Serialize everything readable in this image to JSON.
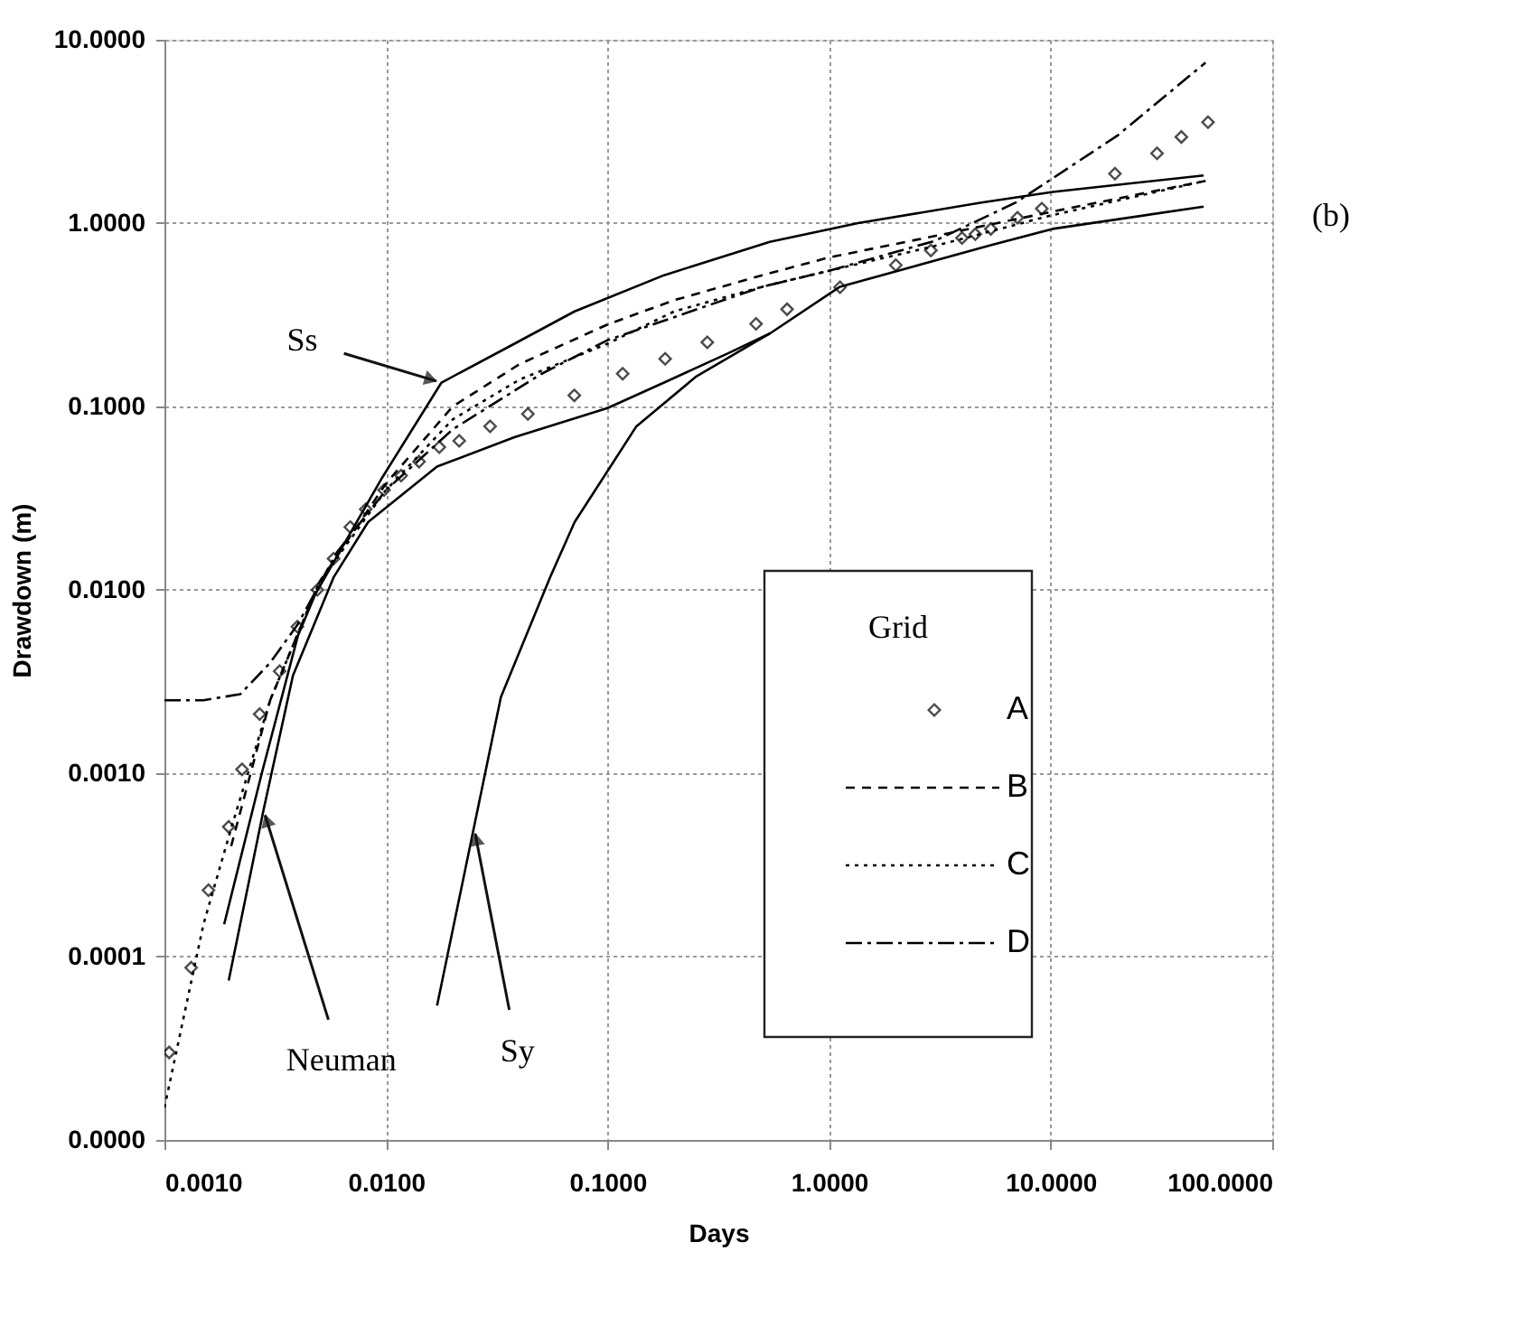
{
  "chart_data": {
    "type": "line",
    "xlabel": "Days",
    "ylabel": "Drawdown (m)",
    "legend_title": "Grid",
    "log": "xy",
    "grid": true,
    "legend": "bottom right",
    "xlim": [
      0.001,
      100
    ],
    "ylim": [
      1e-05,
      10
    ],
    "xticks": [
      {
        "value": 0.001,
        "label": "0.0010"
      },
      {
        "value": 0.01,
        "label": "0.0100"
      },
      {
        "value": 0.1,
        "label": "0.1000"
      },
      {
        "value": 1,
        "label": "1.0000"
      },
      {
        "value": 10,
        "label": "10.0000"
      },
      {
        "value": 100,
        "label": "100.0000"
      }
    ],
    "yticks": [
      {
        "value": 1e-05,
        "label": "0.0000"
      },
      {
        "value": 0.0001,
        "label": "0.0001"
      },
      {
        "value": 0.001,
        "label": "0.0010"
      },
      {
        "value": 0.01,
        "label": "0.0100"
      },
      {
        "value": 0.1,
        "label": "0.1000"
      },
      {
        "value": 1,
        "label": "1.0000"
      },
      {
        "value": 10,
        "label": "10.0000"
      }
    ],
    "series": [
      {
        "name": "A",
        "type": "scatter",
        "marker": "diamond",
        "color": "#000000",
        "x": [
          0.00105,
          0.00132,
          0.00158,
          0.00195,
          0.00224,
          0.00269,
          0.00331,
          0.00398,
          0.0049,
          0.0058,
          0.0069,
          0.0081,
          0.0098,
          0.0117,
          0.0141,
          0.0174,
          0.0214,
          0.0295,
          0.0437,
          0.0708,
          0.117,
          0.182,
          0.282,
          0.468,
          0.646,
          1.12,
          2.0,
          2.88,
          3.98,
          4.57,
          5.37,
          7.08,
          9.12,
          19.5,
          30.2,
          38.9,
          51.3
        ],
        "values": [
          3e-05,
          8.7e-05,
          0.00023,
          0.00051,
          0.00105,
          0.0021,
          0.0036,
          0.0063,
          0.01,
          0.0148,
          0.022,
          0.0275,
          0.035,
          0.042,
          0.05,
          0.06,
          0.065,
          0.078,
          0.091,
          0.115,
          0.151,
          0.182,
          0.224,
          0.282,
          0.339,
          0.447,
          0.59,
          0.71,
          0.83,
          0.87,
          0.93,
          1.07,
          1.2,
          1.86,
          2.4,
          2.95,
          3.55
        ]
      },
      {
        "name": "B",
        "line_style": "dashed",
        "color": "#000000",
        "x": [
          0.002,
          0.003,
          0.005,
          0.01,
          0.02,
          0.04,
          0.1,
          0.2,
          0.5,
          1,
          3,
          10,
          50
        ],
        "values": [
          0.0004,
          0.0025,
          0.011,
          0.038,
          0.1,
          0.17,
          0.28,
          0.38,
          0.52,
          0.65,
          0.85,
          1.15,
          1.7
        ]
      },
      {
        "name": "C",
        "line_style": "dotted",
        "color": "#000000",
        "x": [
          0.001,
          0.0015,
          0.002,
          0.003,
          0.005,
          0.01,
          0.02,
          0.04,
          0.1,
          0.2,
          0.5,
          1,
          3,
          10,
          50
        ],
        "values": [
          1.5e-05,
          0.00015,
          0.0005,
          0.0025,
          0.011,
          0.035,
          0.085,
          0.14,
          0.22,
          0.33,
          0.45,
          0.55,
          0.75,
          1.1,
          1.7
        ]
      },
      {
        "name": "D",
        "line_style": "dashdot",
        "color": "#000000",
        "x": [
          0.001,
          0.0015,
          0.0022,
          0.003,
          0.004,
          0.006,
          0.01,
          0.02,
          0.05,
          0.1,
          0.5,
          1,
          3,
          7,
          20,
          50
        ],
        "values": [
          0.0025,
          0.0025,
          0.0027,
          0.004,
          0.0065,
          0.016,
          0.035,
          0.075,
          0.15,
          0.23,
          0.45,
          0.55,
          0.8,
          1.3,
          3,
          7.5
        ]
      },
      {
        "line_style": "solid",
        "color": "#000000",
        "x": [
          0.00186,
          0.00275,
          0.004,
          0.0048,
          0.0095,
          0.0178,
          0.038,
          0.071,
          0.18,
          0.54,
          1.35,
          4.8,
          10.2,
          49
        ],
        "values": [
          0.00015,
          0.001,
          0.0056,
          0.0095,
          0.04,
          0.135,
          0.22,
          0.33,
          0.52,
          0.79,
          1.0,
          1.29,
          1.48,
          1.82
        ]
      },
      {
        "line_style": "solid",
        "color": "#000000",
        "x": [
          0.00195,
          0.0028,
          0.0038,
          0.0058,
          0.0083,
          0.017,
          0.038,
          0.1,
          0.18,
          0.35,
          0.54,
          1.12,
          5.4,
          10.2,
          49
        ],
        "values": [
          7.4e-05,
          0.00063,
          0.0034,
          0.0117,
          0.0234,
          0.047,
          0.068,
          0.098,
          0.135,
          0.195,
          0.25,
          0.45,
          0.76,
          0.93,
          1.23
        ]
      },
      {
        "line_style": "solid",
        "color": "#000000",
        "x": [
          0.017,
          0.033,
          0.055,
          0.071,
          0.135,
          0.25,
          0.54
        ],
        "values": [
          5.4e-05,
          0.0026,
          0.0117,
          0.0234,
          0.078,
          0.145,
          0.25
        ]
      }
    ],
    "annotations": [
      {
        "text": "Ss",
        "x": 0.0178,
        "y": 0.135
      },
      {
        "text": "Neuman",
        "x": 0.0028,
        "y": 0.00063
      },
      {
        "text": "Sy",
        "x": 0.025,
        "y": 0.0005
      },
      "(b)"
    ]
  }
}
